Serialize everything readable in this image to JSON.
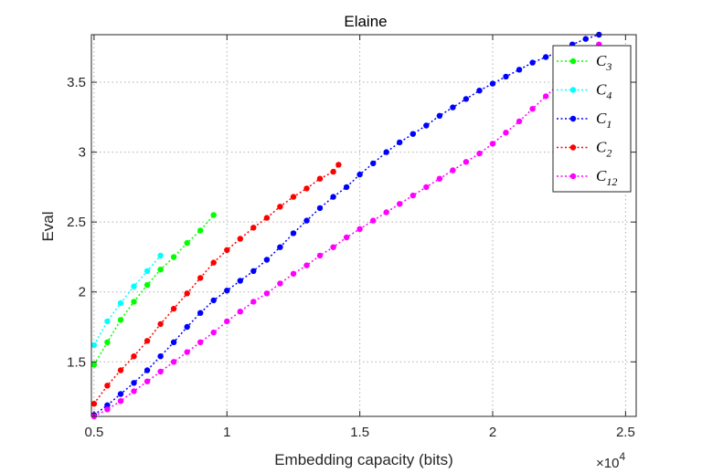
{
  "chart_data": {
    "type": "line",
    "title": "Elaine",
    "xlabel": "Embedding capacity (bits)",
    "ylabel": "Eval",
    "x_exponent_label": "×10",
    "x_exponent": "4",
    "xlim": [
      0.49,
      2.54
    ],
    "ylim": [
      1.11,
      3.84
    ],
    "xticks": [
      0.5,
      1,
      1.5,
      2,
      2.5
    ],
    "xtick_labels": [
      "0.5",
      "1",
      "1.5",
      "2",
      "2.5"
    ],
    "yticks": [
      1.5,
      2,
      2.5,
      3,
      3.5
    ],
    "ytick_labels": [
      "1.5",
      "2",
      "2.5",
      "3",
      "3.5"
    ],
    "grid": true,
    "legend_position": "top-right",
    "series": [
      {
        "name": "C",
        "sub": "3",
        "color": "#00ff00",
        "x": [
          0.5,
          0.55,
          0.6,
          0.65,
          0.7,
          0.75,
          0.8,
          0.85,
          0.9,
          0.95
        ],
        "y": [
          1.48,
          1.64,
          1.8,
          1.93,
          2.05,
          2.16,
          2.25,
          2.35,
          2.44,
          2.55
        ]
      },
      {
        "name": "C",
        "sub": "4",
        "color": "#00ffff",
        "x": [
          0.5,
          0.55,
          0.6,
          0.65,
          0.7,
          0.75
        ],
        "y": [
          1.62,
          1.79,
          1.92,
          2.04,
          2.15,
          2.26
        ]
      },
      {
        "name": "C",
        "sub": "1",
        "color": "#0000ff",
        "x": [
          0.5,
          0.55,
          0.6,
          0.65,
          0.7,
          0.75,
          0.8,
          0.85,
          0.9,
          0.95,
          1.0,
          1.05,
          1.1,
          1.15,
          1.2,
          1.25,
          1.3,
          1.35,
          1.4,
          1.45,
          1.5,
          1.55,
          1.6,
          1.65,
          1.7,
          1.75,
          1.8,
          1.85,
          1.9,
          1.95,
          2.0,
          2.05,
          2.1,
          2.15,
          2.2,
          2.25,
          2.3,
          2.35,
          2.4
        ],
        "y": [
          1.12,
          1.19,
          1.27,
          1.35,
          1.44,
          1.54,
          1.64,
          1.75,
          1.85,
          1.94,
          2.01,
          2.08,
          2.15,
          2.23,
          2.32,
          2.42,
          2.51,
          2.6,
          2.68,
          2.75,
          2.84,
          2.92,
          3.0,
          3.07,
          3.13,
          3.19,
          3.26,
          3.32,
          3.38,
          3.44,
          3.49,
          3.54,
          3.59,
          3.64,
          3.68,
          3.72,
          3.77,
          3.81,
          3.84
        ]
      },
      {
        "name": "C",
        "sub": "2",
        "color": "#ff0000",
        "x": [
          0.5,
          0.55,
          0.6,
          0.65,
          0.7,
          0.75,
          0.8,
          0.85,
          0.9,
          0.95,
          1.0,
          1.05,
          1.1,
          1.15,
          1.2,
          1.25,
          1.3,
          1.35,
          1.4,
          1.42
        ],
        "y": [
          1.2,
          1.33,
          1.44,
          1.54,
          1.65,
          1.77,
          1.88,
          1.99,
          2.1,
          2.21,
          2.3,
          2.38,
          2.46,
          2.53,
          2.61,
          2.68,
          2.74,
          2.81,
          2.86,
          2.91
        ]
      },
      {
        "name": "C",
        "sub": "12",
        "color": "#ff00ff",
        "x": [
          0.5,
          0.55,
          0.6,
          0.65,
          0.7,
          0.75,
          0.8,
          0.85,
          0.9,
          0.95,
          1.0,
          1.05,
          1.1,
          1.15,
          1.2,
          1.25,
          1.3,
          1.35,
          1.4,
          1.45,
          1.5,
          1.55,
          1.6,
          1.65,
          1.7,
          1.75,
          1.8,
          1.85,
          1.9,
          1.95,
          2.0,
          2.05,
          2.1,
          2.15,
          2.2,
          2.25,
          2.3,
          2.35,
          2.4
        ],
        "y": [
          1.11,
          1.16,
          1.22,
          1.29,
          1.36,
          1.43,
          1.5,
          1.57,
          1.64,
          1.71,
          1.79,
          1.86,
          1.93,
          1.99,
          2.06,
          2.13,
          2.19,
          2.26,
          2.32,
          2.39,
          2.45,
          2.51,
          2.57,
          2.63,
          2.69,
          2.75,
          2.81,
          2.87,
          2.93,
          2.99,
          3.06,
          3.14,
          3.22,
          3.31,
          3.4,
          3.49,
          3.58,
          3.68,
          3.77
        ]
      }
    ]
  }
}
